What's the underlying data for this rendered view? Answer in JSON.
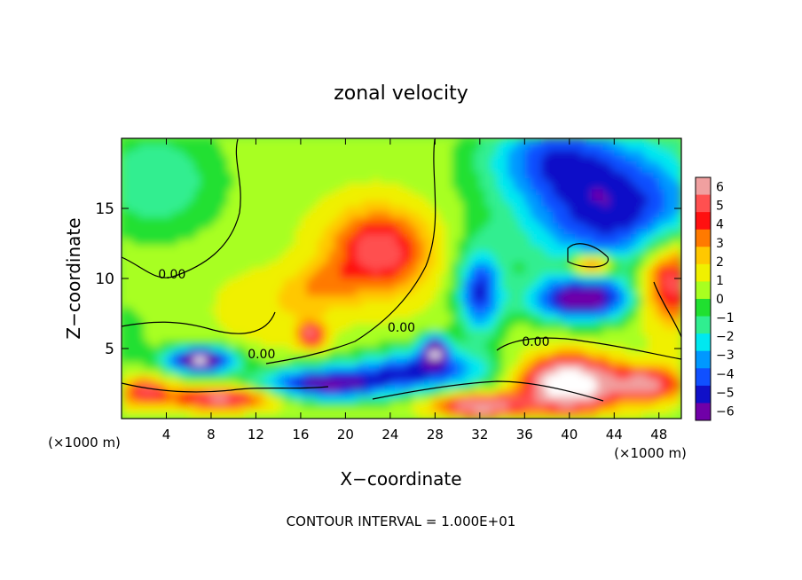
{
  "chart_data": {
    "type": "heatmap",
    "title": "zonal velocity",
    "xlabel": "X−coordinate",
    "ylabel": "Z−coordinate",
    "x_unit_left": "(×1000 m)",
    "x_unit_right": "(×1000 m)",
    "footer": "CONTOUR INTERVAL = 1.000E+01",
    "xlim": [
      0,
      50
    ],
    "ylim": [
      0,
      20
    ],
    "x_ticks": [
      4,
      8,
      12,
      16,
      20,
      24,
      28,
      32,
      36,
      40,
      44,
      48
    ],
    "y_ticks": [
      5,
      10,
      15
    ],
    "x_tick_labels": [
      "4",
      "8",
      "12",
      "16",
      "20",
      "24",
      "28",
      "32",
      "36",
      "40",
      "44",
      "48"
    ],
    "y_tick_labels": [
      "5",
      "10",
      "15"
    ],
    "colorbar": {
      "min": -6,
      "max": 6,
      "labels": [
        "6",
        "5",
        "4",
        "3",
        "2",
        "1",
        "0",
        "−1",
        "−2",
        "−3",
        "−4",
        "−5",
        "−6"
      ],
      "colors": [
        "#f0a0a0",
        "#ff5050",
        "#ff1010",
        "#ff7a00",
        "#ffc800",
        "#f0f000",
        "#a8ff20",
        "#20e030",
        "#30ee90",
        "#00e8f0",
        "#0098ff",
        "#1050ff",
        "#1010c8",
        "#7000a8"
      ]
    },
    "contour_labels": [
      {
        "text": "0.00",
        "x": 4.5,
        "z": 10.0
      },
      {
        "text": "0.00",
        "x": 12.5,
        "z": 4.3
      },
      {
        "text": "0.00",
        "x": 25.0,
        "z": 6.2
      },
      {
        "text": "0.00",
        "x": 37.0,
        "z": 5.2
      }
    ],
    "field_features": [
      {
        "x": 23,
        "z": 12,
        "sx": 4.5,
        "sz": 3.0,
        "a": 4.5
      },
      {
        "x": 18,
        "z": 9.5,
        "sx": 3.0,
        "sz": 1.5,
        "a": 1.5
      },
      {
        "x": 14,
        "z": 8,
        "sx": 5,
        "sz": 2.5,
        "a": 1.0
      },
      {
        "x": 17,
        "z": 6.0,
        "sx": 1.2,
        "sz": 0.9,
        "a": 4.5
      },
      {
        "x": 3,
        "z": 17,
        "sx": 6,
        "sz": 4,
        "a": -2.2
      },
      {
        "x": 0,
        "z": 6,
        "sx": 3,
        "sz": 3,
        "a": -1.0
      },
      {
        "x": 44,
        "z": 15,
        "sx": 9,
        "sz": 5,
        "a": -5.5
      },
      {
        "x": 38,
        "z": 19,
        "sx": 6,
        "sz": 3,
        "a": -3
      },
      {
        "x": 32,
        "z": 9,
        "sx": 2.0,
        "sz": 3.0,
        "a": -5
      },
      {
        "x": 41,
        "z": 8.5,
        "sx": 4.5,
        "sz": 1.5,
        "a": -6
      },
      {
        "x": 49,
        "z": 10,
        "sx": 3,
        "sz": 3,
        "a": 5.5
      },
      {
        "x": 42,
        "z": 11,
        "sx": 2,
        "sz": 0.8,
        "a": 5.5
      },
      {
        "x": 7,
        "z": 4.2,
        "sx": 3,
        "sz": 0.9,
        "a": -8
      },
      {
        "x": 18,
        "z": 2.5,
        "sx": 6,
        "sz": 1.2,
        "a": -6
      },
      {
        "x": 27,
        "z": 3.5,
        "sx": 6,
        "sz": 1.5,
        "a": -5
      },
      {
        "x": 28,
        "z": 5,
        "sx": 1.2,
        "sz": 1.0,
        "a": -6
      },
      {
        "x": 9,
        "z": 1.5,
        "sx": 5,
        "sz": 0.8,
        "a": 5
      },
      {
        "x": 2,
        "z": 2.0,
        "sx": 2,
        "sz": 1,
        "a": 4
      },
      {
        "x": 40,
        "z": 2.5,
        "sx": 4,
        "sz": 1.8,
        "a": 9
      },
      {
        "x": 47,
        "z": 2.5,
        "sx": 3,
        "sz": 1.2,
        "a": 5
      },
      {
        "x": 32,
        "z": 1.0,
        "sx": 4,
        "sz": 0.8,
        "a": 6
      }
    ]
  }
}
